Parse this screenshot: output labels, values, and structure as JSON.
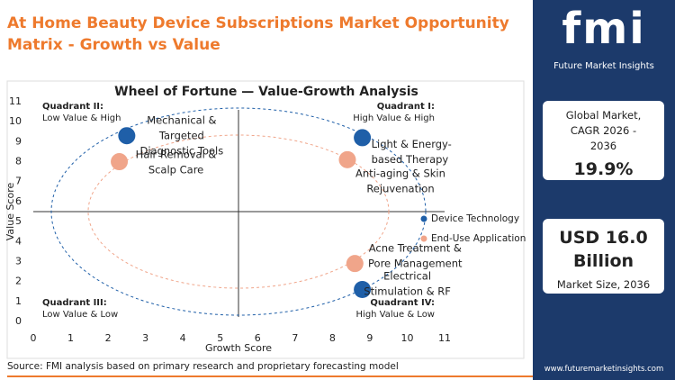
{
  "title": "At Home Beauty Device Subscriptions Market Opportunity Matrix - Growth vs Value",
  "chart_data": {
    "type": "scatter",
    "title": "Wheel of Fortune — Value-Growth Analysis",
    "x_label": "Growth Score",
    "y_label": "Value Score",
    "xlim": [
      0,
      11
    ],
    "ylim": [
      0,
      11
    ],
    "xticks": [
      0,
      1,
      2,
      3,
      4,
      5,
      6,
      7,
      8,
      9,
      10,
      11
    ],
    "yticks": [
      0,
      1,
      2,
      3,
      4,
      5,
      6,
      7,
      8,
      9,
      10,
      11
    ],
    "quadrants": [
      {
        "name": "Quadrant II:",
        "description": "Low Value & High"
      },
      {
        "name": "Quadrant I:",
        "description": "High Value & High"
      },
      {
        "name": "Quadrant III:",
        "description": "Low Value & Low"
      },
      {
        "name": "Quadrant IV:",
        "description": "High Value & Low"
      }
    ],
    "series": [
      {
        "name": "Device Technology",
        "color": "#1f5fa8",
        "x": [
          2.5,
          8.8,
          8.8
        ],
        "values": [
          9.3,
          9.2,
          1.6
        ],
        "labels": [
          [
            "Mechanical &",
            "Targeted",
            "Diagnostic Tools"
          ],
          [
            "Light & Energy-",
            "based Therapy"
          ],
          [
            "Electrical",
            "Stimulation & RF"
          ]
        ]
      },
      {
        "name": "End-Use Application",
        "color": "#f0a58a",
        "x": [
          2.3,
          8.4,
          8.6
        ],
        "values": [
          8.0,
          8.1,
          2.9
        ],
        "labels": [
          [
            "Hair Removal &",
            "Scalp Care"
          ],
          [
            "Anti-aging & Skin",
            "Rejuvenation"
          ],
          [
            "Acne Treatment &",
            "Pore Management"
          ]
        ]
      }
    ]
  },
  "sidebar": {
    "logo": "fmi",
    "brand": "Future Market Insights",
    "cagr_label": "Global Market, CAGR 2026 - 2036",
    "cagr_value": "19.9%",
    "size_value": "USD 16.0 Billion",
    "size_label": "Market Size, 2036"
  },
  "footer": {
    "source": "Source: FMI analysis based on primary research and proprietary forecasting model",
    "url": "www.futuremarketinsights.com"
  }
}
